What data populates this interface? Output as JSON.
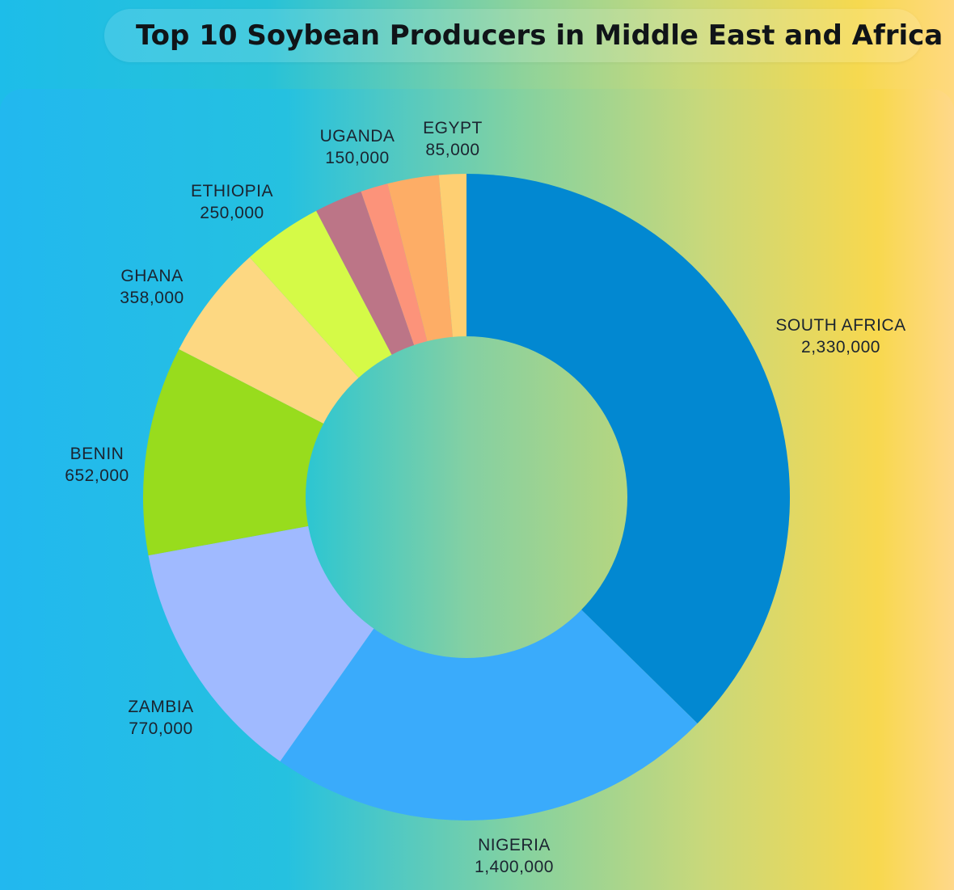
{
  "title": "Top 10 Soybean Producers in Middle East and Africa",
  "chart_data": {
    "type": "pie",
    "title": "Top 10 Soybean Producers in Middle East and Africa",
    "donut": true,
    "start": "12 o'clock",
    "direction": "clockwise",
    "categories": [
      "SOUTH AFRICA",
      "NIGERIA",
      "ZAMBIA",
      "BENIN",
      "GHANA",
      "ETHIOPIA",
      "UGANDA",
      "EGYPT"
    ],
    "values": [
      2330000,
      1400000,
      770000,
      652000,
      358000,
      250000,
      150000,
      85000
    ],
    "value_labels": [
      "2,330,000",
      "1,400,000",
      "770,000",
      "652,000",
      "358,000",
      "250,000",
      "150,000",
      "85,000"
    ],
    "colors": [
      "#0288d1",
      "#3aabfb",
      "#a0baff",
      "#98dc1d",
      "#fdd882",
      "#d5fa47",
      "#bc7587",
      "#fc937a",
      "#fdad66",
      "#fecf72"
    ],
    "extra_slices": [
      {
        "name": "",
        "value": 160000,
        "color": "#fdad66"
      },
      {
        "name": "",
        "value": 85000,
        "color": "#fecf72"
      }
    ]
  }
}
